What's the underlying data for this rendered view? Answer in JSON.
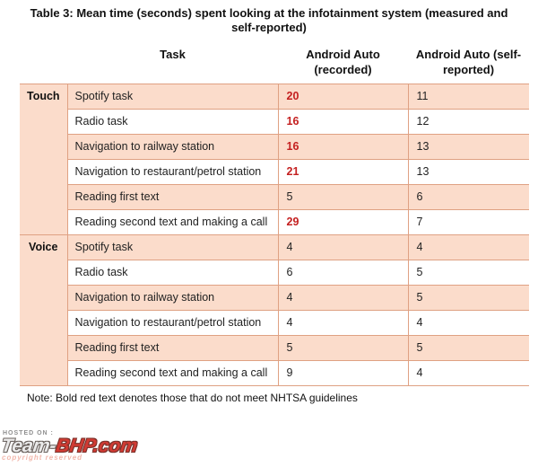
{
  "title": "Table 3: Mean time (seconds) spent looking at the infotainment system (measured and self-reported)",
  "table": {
    "headers": {
      "mode": "",
      "task": "Task",
      "recorded": "Android Auto (recorded)",
      "self_reported": "Android Auto (self-reported)"
    },
    "groups": [
      {
        "mode": "Touch",
        "rows": [
          {
            "task": "Spotify task",
            "recorded": "20",
            "recorded_red": true,
            "self": "11"
          },
          {
            "task": "Radio task",
            "recorded": "16",
            "recorded_red": true,
            "self": "12"
          },
          {
            "task": "Navigation to railway station",
            "recorded": "16",
            "recorded_red": true,
            "self": "13"
          },
          {
            "task": "Navigation to restaurant/petrol station",
            "recorded": "21",
            "recorded_red": true,
            "self": "13"
          },
          {
            "task": "Reading first text",
            "recorded": "5",
            "recorded_red": false,
            "self": "6"
          },
          {
            "task": "Reading second text and making a call",
            "recorded": "29",
            "recorded_red": true,
            "self": "7"
          }
        ]
      },
      {
        "mode": "Voice",
        "rows": [
          {
            "task": "Spotify task",
            "recorded": "4",
            "recorded_red": false,
            "self": "4"
          },
          {
            "task": "Radio task",
            "recorded": "6",
            "recorded_red": false,
            "self": "5"
          },
          {
            "task": "Navigation to railway station",
            "recorded": "4",
            "recorded_red": false,
            "self": "5"
          },
          {
            "task": "Navigation to restaurant/petrol station",
            "recorded": "4",
            "recorded_red": false,
            "self": "4"
          },
          {
            "task": "Reading first text",
            "recorded": "5",
            "recorded_red": false,
            "self": "5"
          },
          {
            "task": "Reading second text and making a call",
            "recorded": "9",
            "recorded_red": false,
            "self": "4"
          }
        ]
      }
    ]
  },
  "note": "Note: Bold red text denotes those that do not meet NHTSA guidelines",
  "watermark": {
    "hosted_on": "HOSTED ON :",
    "logo_team": "Team-",
    "logo_bhp": "BHP",
    "logo_com": ".com",
    "copyright": "copyright reserved"
  },
  "colors": {
    "row_fill": "#fbdccb",
    "border": "#dfa183",
    "red_text": "#c42020"
  }
}
